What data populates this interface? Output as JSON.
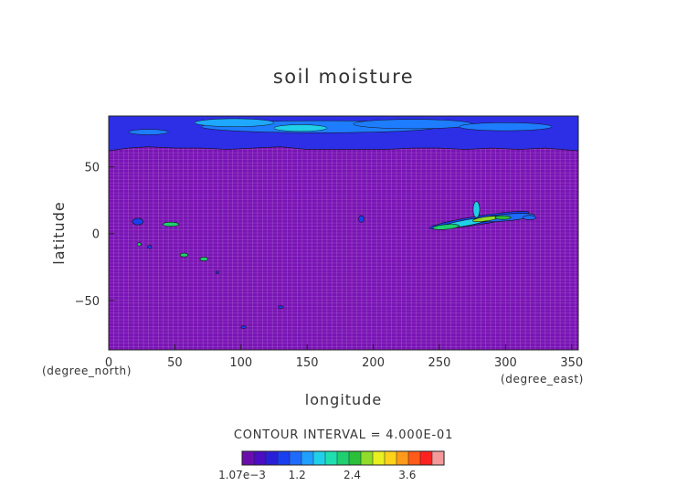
{
  "chart_data": {
    "type": "heatmap",
    "title": "soil moisture",
    "xlabel": "longitude",
    "ylabel": "latitude",
    "x_unit": "(degree_east)",
    "y_unit": "(degree_north)",
    "xlim": [
      0,
      355
    ],
    "ylim": [
      -87,
      88
    ],
    "x_ticks": [
      0,
      50,
      100,
      150,
      200,
      250,
      300,
      350
    ],
    "y_ticks": [
      -50,
      0,
      50
    ],
    "grid": true,
    "contour_interval_text": "CONTOUR INTERVAL = 4.000E-01",
    "colorbar": {
      "min": 0.00107,
      "max": 4.4,
      "labels": [
        "1.07e−3",
        "1.2",
        "2.4",
        "3.6"
      ],
      "label_values": [
        0.00107,
        1.2,
        2.4,
        3.6
      ],
      "colors": [
        "#6a0dad",
        "#4b0cc2",
        "#2a1fd8",
        "#1a3ff0",
        "#1e6cff",
        "#1fa0ff",
        "#20d0e8",
        "#1fdfb0",
        "#1fcf70",
        "#2bbf3a",
        "#8fdc2a",
        "#e8f01f",
        "#ffd21a",
        "#ff9a1a",
        "#ff5a1a",
        "#ff2020",
        "#f59a9a"
      ]
    },
    "regions": [
      {
        "label": "background",
        "level": 0.2
      },
      {
        "label": "high-latitude band (north of ~65N)",
        "lat_min": 65,
        "level": 0.8
      },
      {
        "label": "equatorial band 245-325E",
        "lon_range": [
          245,
          325
        ],
        "lat_range": [
          3,
          25
        ],
        "max_level": 3.0
      }
    ]
  }
}
